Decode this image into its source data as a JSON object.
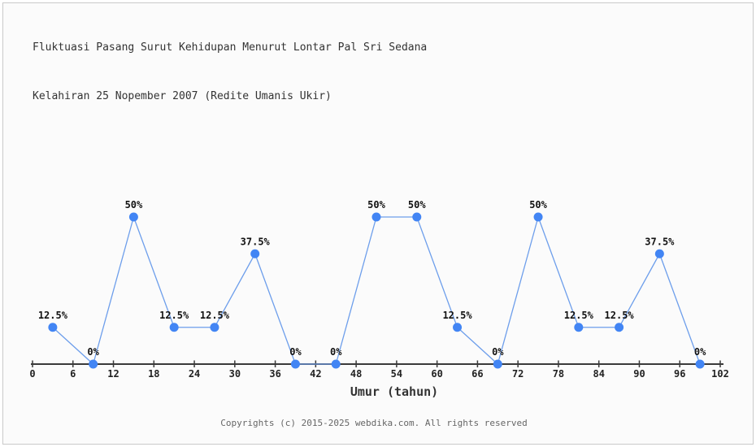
{
  "title": {
    "line1": "Fluktuasi Pasang Surut Kehidupan Menurut Lontar Pal Sri Sedana",
    "line2": "Kelahiran 25 Nopember 2007 (Redite Umanis Ukir)"
  },
  "chart_data": {
    "type": "line",
    "title": "Fluktuasi Pasang Surut Kehidupan Menurut Lontar Pal Sri Sedana Kelahiran 25 Nopember 2007 (Redite Umanis Ukir)",
    "xlabel": "Umur (tahun)",
    "ylabel": "",
    "x": [
      3,
      9,
      15,
      21,
      27,
      33,
      39,
      45,
      51,
      57,
      63,
      69,
      75,
      81,
      87,
      93,
      99
    ],
    "values": [
      12.5,
      0,
      50,
      12.5,
      12.5,
      37.5,
      0,
      0,
      50,
      50,
      12.5,
      0,
      50,
      12.5,
      12.5,
      37.5,
      0
    ],
    "point_labels": [
      "12.5%",
      "0%",
      "50%",
      "12.5%",
      "12.5%",
      "37.5%",
      "0%",
      "0%",
      "50%",
      "50%",
      "12.5%",
      "0%",
      "50%",
      "12.5%",
      "12.5%",
      "37.5%",
      "0%"
    ],
    "x_ticks": [
      0,
      6,
      12,
      18,
      24,
      30,
      36,
      42,
      48,
      54,
      60,
      66,
      72,
      78,
      84,
      90,
      96,
      102
    ],
    "xlim": [
      0,
      102
    ],
    "ylim": [
      0,
      100
    ],
    "grid": false,
    "legend": false,
    "line_color": "#6d9eeb",
    "marker_color": "#4285f4",
    "axis_color": "#3a3a3a",
    "tick_label_color": "#222222",
    "point_label_color": "#111111"
  },
  "footer": {
    "copyright": "Copyrights (c) 2015-2025 webdika.com. All rights reserved"
  }
}
